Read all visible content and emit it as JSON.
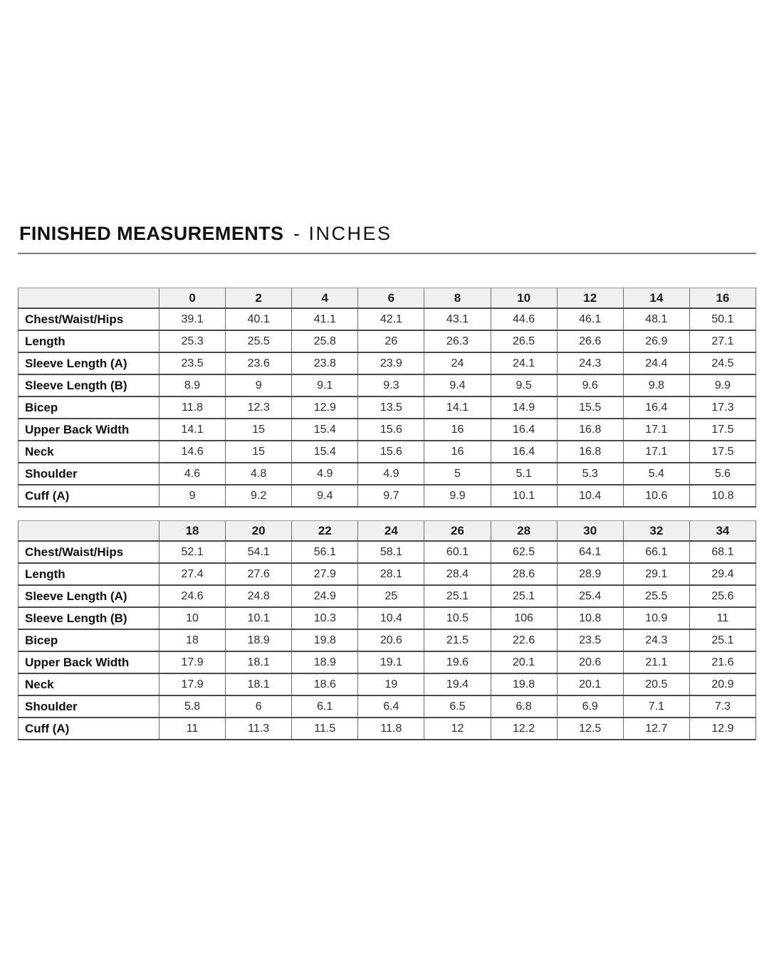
{
  "header": {
    "title": "FINISHED MEASUREMENTS",
    "unit_suffix": "- INCHES"
  },
  "colors": {
    "header_row_bg": "#f0f0f0",
    "grid_line_horizontal": "#484848",
    "grid_line_vertical": "#6f6f6f",
    "title_underline": "#7a7a7a",
    "text": "#1a1a1a"
  },
  "size_tables": [
    {
      "sizes": [
        "0",
        "2",
        "4",
        "6",
        "8",
        "10",
        "12",
        "14",
        "16"
      ],
      "rows": [
        {
          "label": "Chest/Waist/Hips",
          "values": [
            "39.1",
            "40.1",
            "41.1",
            "42.1",
            "43.1",
            "44.6",
            "46.1",
            "48.1",
            "50.1"
          ]
        },
        {
          "label": "Length",
          "values": [
            "25.3",
            "25.5",
            "25.8",
            "26",
            "26.3",
            "26.5",
            "26.6",
            "26.9",
            "27.1"
          ]
        },
        {
          "label": "Sleeve Length (A)",
          "values": [
            "23.5",
            "23.6",
            "23.8",
            "23.9",
            "24",
            "24.1",
            "24.3",
            "24.4",
            "24.5"
          ]
        },
        {
          "label": "Sleeve Length (B)",
          "values": [
            "8.9",
            "9",
            "9.1",
            "9.3",
            "9.4",
            "9.5",
            "9.6",
            "9.8",
            "9.9"
          ]
        },
        {
          "label": "Bicep",
          "values": [
            "11.8",
            "12.3",
            "12.9",
            "13.5",
            "14.1",
            "14.9",
            "15.5",
            "16.4",
            "17.3"
          ]
        },
        {
          "label": "Upper Back Width",
          "values": [
            "14.1",
            "15",
            "15.4",
            "15.6",
            "16",
            "16.4",
            "16.8",
            "17.1",
            "17.5"
          ]
        },
        {
          "label": "Neck",
          "values": [
            "14.6",
            "15",
            "15.4",
            "15.6",
            "16",
            "16.4",
            "16.8",
            "17.1",
            "17.5"
          ]
        },
        {
          "label": "Shoulder",
          "values": [
            "4.6",
            "4.8",
            "4.9",
            "4.9",
            "5",
            "5.1",
            "5.3",
            "5.4",
            "5.6"
          ]
        },
        {
          "label": "Cuff (A)",
          "values": [
            "9",
            "9.2",
            "9.4",
            "9.7",
            "9.9",
            "10.1",
            "10.4",
            "10.6",
            "10.8"
          ]
        }
      ]
    },
    {
      "sizes": [
        "18",
        "20",
        "22",
        "24",
        "26",
        "28",
        "30",
        "32",
        "34"
      ],
      "rows": [
        {
          "label": "Chest/Waist/Hips",
          "values": [
            "52.1",
            "54.1",
            "56.1",
            "58.1",
            "60.1",
            "62.5",
            "64.1",
            "66.1",
            "68.1"
          ]
        },
        {
          "label": "Length",
          "values": [
            "27.4",
            "27.6",
            "27.9",
            "28.1",
            "28.4",
            "28.6",
            "28.9",
            "29.1",
            "29.4"
          ]
        },
        {
          "label": "Sleeve Length (A)",
          "values": [
            "24.6",
            "24.8",
            "24.9",
            "25",
            "25.1",
            "25.1",
            "25.4",
            "25.5",
            "25.6"
          ]
        },
        {
          "label": "Sleeve Length (B)",
          "values": [
            "10",
            "10.1",
            "10.3",
            "10.4",
            "10.5",
            "106",
            "10.8",
            "10.9",
            "11"
          ]
        },
        {
          "label": "Bicep",
          "values": [
            "18",
            "18.9",
            "19.8",
            "20.6",
            "21.5",
            "22.6",
            "23.5",
            "24.3",
            "25.1"
          ]
        },
        {
          "label": "Upper Back Width",
          "values": [
            "17.9",
            "18.1",
            "18.9",
            "19.1",
            "19.6",
            "20.1",
            "20.6",
            "21.1",
            "21.6"
          ]
        },
        {
          "label": "Neck",
          "values": [
            "17.9",
            "18.1",
            "18.6",
            "19",
            "19.4",
            "19.8",
            "20.1",
            "20.5",
            "20.9"
          ]
        },
        {
          "label": "Shoulder",
          "values": [
            "5.8",
            "6",
            "6.1",
            "6.4",
            "6.5",
            "6.8",
            "6.9",
            "7.1",
            "7.3"
          ]
        },
        {
          "label": "Cuff (A)",
          "values": [
            "11",
            "11.3",
            "11.5",
            "11.8",
            "12",
            "12.2",
            "12.5",
            "12.7",
            "12.9"
          ]
        }
      ]
    }
  ]
}
